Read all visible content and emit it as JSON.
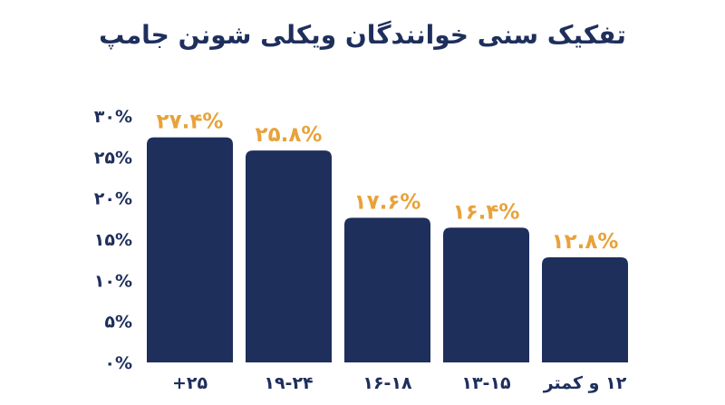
{
  "title": "تفکیک سنی خوانندگان ویکلی شونن جامپ",
  "colors": {
    "bar": "#1e2f5c",
    "label": "#e8a23a",
    "text": "#1e2f5c"
  },
  "chart_data": {
    "type": "bar",
    "title": "تفکیک سنی خوانندگان ویکلی شونن جامپ",
    "categories": [
      "۲۵+",
      "۱۹-۲۴",
      "۱۶-۱۸",
      "۱۳-۱۵",
      "۱۲ و کمتر"
    ],
    "values": [
      27.4,
      25.8,
      17.6,
      16.4,
      12.8
    ],
    "data_labels": [
      "۲۷.۴%",
      "۲۵.۸%",
      "۱۷.۶%",
      "۱۶.۴%",
      "۱۲.۸%"
    ],
    "ylim": [
      0,
      30
    ],
    "yticks": [
      0,
      5,
      10,
      15,
      20,
      25,
      30
    ],
    "ytick_labels": [
      "۰%",
      "۵%",
      "۱۰%",
      "۱۵%",
      "۲۰%",
      "۲۵%",
      "۳۰%"
    ],
    "xlabel": "",
    "ylabel": "",
    "grid": false,
    "legend": "none"
  }
}
